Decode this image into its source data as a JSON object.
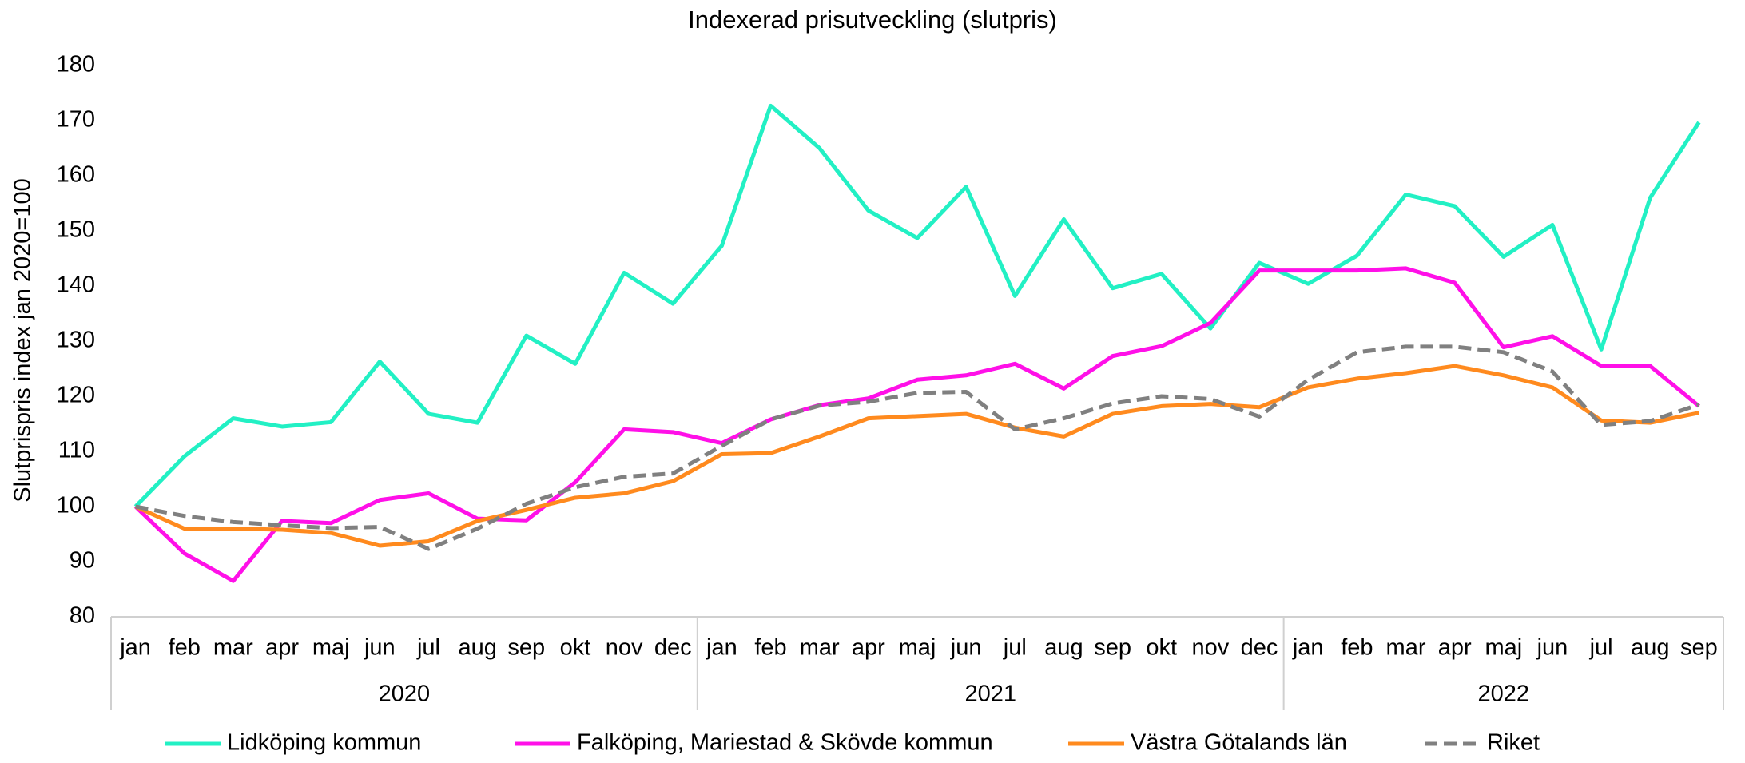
{
  "chart_data": {
    "type": "line",
    "title": "Indexerad prisutveckling (slutpris)",
    "y_label": "Slutprispris index jan 2020=100",
    "categories": [
      "jan",
      "feb",
      "mar",
      "apr",
      "maj",
      "jun",
      "jul",
      "aug",
      "sep",
      "okt",
      "nov",
      "dec",
      "jan",
      "feb",
      "mar",
      "apr",
      "maj",
      "jun",
      "jul",
      "aug",
      "sep",
      "okt",
      "nov",
      "dec",
      "jan",
      "feb",
      "mar",
      "apr",
      "maj",
      "jun",
      "jul",
      "aug",
      "sep"
    ],
    "year_labels": [
      "2020",
      "2021",
      "2022"
    ],
    "ylim": [
      80,
      180
    ],
    "yticks": [
      80,
      90,
      100,
      110,
      120,
      130,
      140,
      150,
      160,
      170,
      180
    ],
    "grid": false,
    "legend": "bottom",
    "series": [
      {
        "name": "Lidköping kommun",
        "color": "#22f0c4",
        "dashed": false,
        "values": [
          100,
          109.1,
          116,
          114.5,
          115.3,
          126.3,
          116.8,
          115.2,
          131,
          125.9,
          142.4,
          136.8,
          147.3,
          172.7,
          165,
          153.7,
          148.7,
          158,
          138.2,
          152.1,
          139.6,
          142.2,
          132.3,
          144.2,
          140.4,
          145.5,
          156.6,
          154.5,
          145.3,
          151.1,
          128.5,
          156,
          169.7
        ]
      },
      {
        "name": "Falköping, Mariestad & Skövde kommun",
        "color": "#ff10e8",
        "dashed": false,
        "values": [
          100,
          91.5,
          86.5,
          97.4,
          97,
          101.2,
          102.4,
          97.8,
          97.5,
          104.4,
          114,
          113.5,
          111.5,
          115.8,
          118.4,
          119.6,
          123,
          123.8,
          125.9,
          121.4,
          127.3,
          129.1,
          133.3,
          142.8,
          142.8,
          142.8,
          143.2,
          140.6,
          128.9,
          130.9,
          125.5,
          125.5,
          118.2
        ]
      },
      {
        "name": "Västra Götalands län",
        "color": "#ff8a1e",
        "dashed": false,
        "values": [
          100,
          96,
          96,
          95.8,
          95.2,
          92.9,
          93.7,
          97.4,
          99.4,
          101.6,
          102.4,
          104.6,
          109.5,
          109.7,
          112.7,
          116,
          116.4,
          116.8,
          114.3,
          112.7,
          116.8,
          118.2,
          118.6,
          118,
          121.6,
          123.2,
          124.2,
          125.5,
          123.8,
          121.6,
          115.6,
          115.2,
          117
        ]
      },
      {
        "name": "Riket",
        "color": "#808080",
        "dashed": true,
        "values": [
          100,
          98.3,
          97.2,
          96.6,
          96.1,
          96.3,
          92.3,
          96,
          100.5,
          103.5,
          105.4,
          106,
          111,
          115.8,
          118.3,
          119,
          120.6,
          120.8,
          114,
          116,
          118.7,
          120,
          119.5,
          116.3,
          123,
          128,
          129,
          129,
          128,
          124.5,
          114.8,
          115.5,
          118.5
        ]
      }
    ]
  }
}
